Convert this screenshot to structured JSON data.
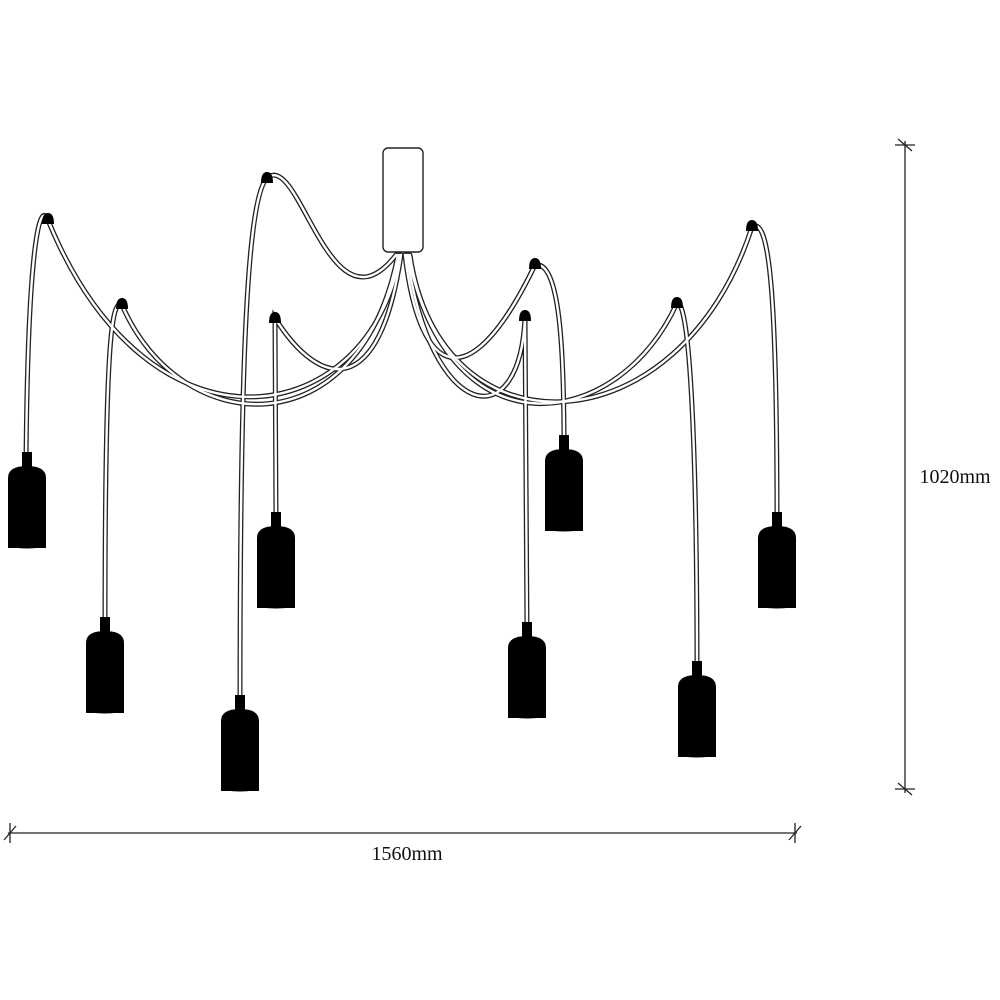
{
  "dimensions": {
    "width": "1560mm",
    "height": "1020mm"
  }
}
